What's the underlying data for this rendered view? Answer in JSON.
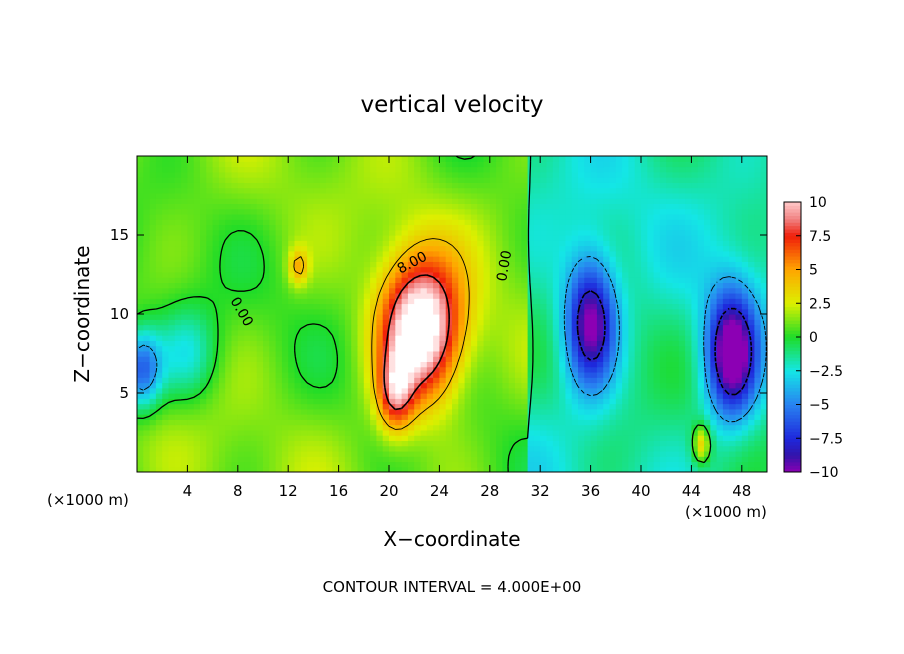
{
  "chart_data": {
    "type": "heatmap",
    "title": "vertical velocity",
    "xlabel": "X−coordinate",
    "ylabel": "Z−coordinate",
    "x_unit_left": "(×1000 m)",
    "x_unit_right": "(×1000 m)",
    "footer": "CONTOUR INTERVAL = 4.000E+00",
    "xlim": [
      0,
      50
    ],
    "ylim": [
      0,
      20
    ],
    "x_ticks": [
      4,
      8,
      12,
      16,
      20,
      24,
      28,
      32,
      36,
      40,
      44,
      48
    ],
    "x_tick_labels": [
      "4",
      "8",
      "12",
      "16",
      "20",
      "24",
      "28",
      "32",
      "36",
      "40",
      "44",
      "48"
    ],
    "y_ticks": [
      5,
      10,
      15
    ],
    "y_tick_labels": [
      "5",
      "10",
      "15"
    ],
    "colorbar": {
      "range": [
        -10,
        10
      ],
      "ticks": [
        10,
        7.5,
        5,
        2.5,
        0,
        -2.5,
        -5,
        -7.5,
        -10
      ],
      "tick_labels": [
        "10",
        "7.5",
        "5",
        "2.5",
        "0",
        "−2.5",
        "−5",
        "−7.5",
        "−10"
      ]
    },
    "contour_labels": [
      {
        "text": "0.00",
        "x": 8,
        "y": 10
      },
      {
        "text": "8.00",
        "x": 22,
        "y": 13
      },
      {
        "text": "0.00",
        "x": 29.5,
        "y": 13
      }
    ],
    "features": [
      {
        "type": "updraft",
        "cx": 22.5,
        "cz": 9,
        "sx": 3.2,
        "sz": 4.5,
        "amp": 12
      },
      {
        "type": "updraft",
        "cx": 20.5,
        "cz": 5,
        "sx": 1.4,
        "sz": 2.5,
        "amp": 6
      },
      {
        "type": "updraft",
        "cx": 12.8,
        "cz": 13,
        "sx": 0.8,
        "sz": 1.2,
        "amp": 3.5
      },
      {
        "type": "updraft",
        "cx": 44.8,
        "cz": 1.8,
        "sx": 0.7,
        "sz": 1.2,
        "amp": 5
      },
      {
        "type": "downdraft",
        "cx": 36,
        "cz": 9.5,
        "sx": 2,
        "sz": 4,
        "amp": -9
      },
      {
        "type": "downdraft",
        "cx": 47.2,
        "cz": 7.5,
        "sx": 2,
        "sz": 4,
        "amp": -10
      },
      {
        "type": "downdraft",
        "cx": 0.3,
        "cz": 6.5,
        "sx": 1.6,
        "sz": 2.5,
        "amp": -7
      },
      {
        "type": "downdraft",
        "cx": 4,
        "cz": 7.5,
        "sx": 2.5,
        "sz": 3,
        "amp": -3
      }
    ]
  }
}
